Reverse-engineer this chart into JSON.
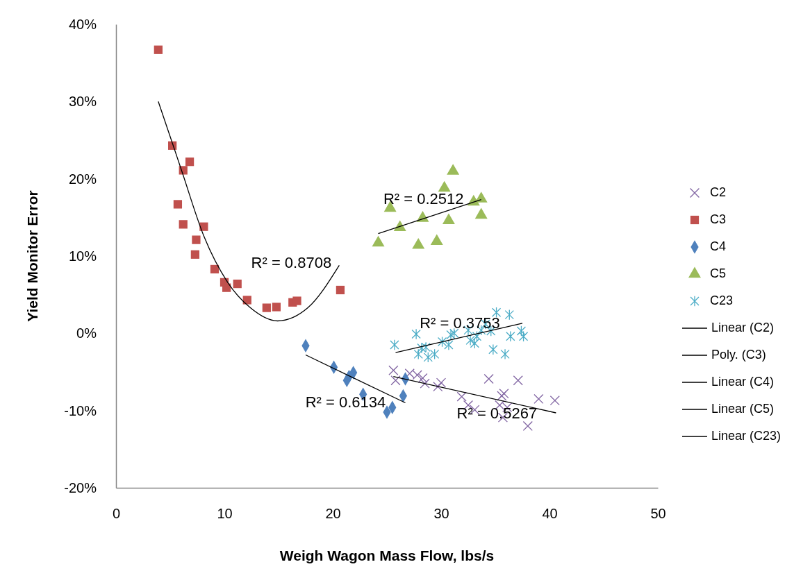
{
  "chart_data": {
    "type": "scatter",
    "xlabel": "Weigh Wagon Mass Flow, lbs/s",
    "ylabel": "Yield Monitor Error",
    "xlim": [
      0,
      50
    ],
    "xticks": [
      0,
      10,
      20,
      30,
      40,
      50
    ],
    "ylim": [
      -20,
      40
    ],
    "yticks": [
      {
        "value": -20,
        "label": "-20%"
      },
      {
        "value": -10,
        "label": "-10%"
      },
      {
        "value": 0,
        "label": "0%"
      },
      {
        "value": 10,
        "label": "10%"
      },
      {
        "value": 20,
        "label": "20%"
      },
      {
        "value": 30,
        "label": "30%"
      },
      {
        "value": 40,
        "label": "40%"
      }
    ],
    "grid": false,
    "legend": "right",
    "series": [
      {
        "name": "C2",
        "marker": "cross",
        "color": "#8064a2",
        "x": [
          25.6,
          25.8,
          27.1,
          27.8,
          28.3,
          28.5,
          29.7,
          30.0,
          31.9,
          32.5,
          33.1,
          34.4,
          35.6,
          35.8,
          37.1,
          35.4,
          36.1,
          39.0,
          40.5,
          38.0,
          35.7
        ],
        "values": [
          -4.8,
          -6.1,
          -5.2,
          -5.4,
          -5.8,
          -6.5,
          -6.9,
          -6.4,
          -8.2,
          -9.3,
          -9.9,
          -5.9,
          -8.1,
          -7.8,
          -6.1,
          -9.3,
          -9.6,
          -8.5,
          -8.7,
          -12.0,
          -10.9
        ]
      },
      {
        "name": "C3",
        "marker": "square",
        "color": "#c0504d",
        "x": [
          3.9,
          5.2,
          6.2,
          6.8,
          5.7,
          6.2,
          8.1,
          7.4,
          7.3,
          9.1,
          10.0,
          10.2,
          11.2,
          12.1,
          13.9,
          14.8,
          16.3,
          16.7,
          20.7
        ],
        "values": [
          36.7,
          24.3,
          21.1,
          22.2,
          16.7,
          14.1,
          13.8,
          12.1,
          10.2,
          8.3,
          6.6,
          5.9,
          6.4,
          4.3,
          3.3,
          3.4,
          4.0,
          4.2,
          5.6
        ]
      },
      {
        "name": "C4",
        "marker": "diamond",
        "color": "#4f81bd",
        "x": [
          17.5,
          20.1,
          21.9,
          21.5,
          21.3,
          22.8,
          26.5,
          26.7,
          25.5,
          25.0
        ],
        "values": [
          -1.6,
          -4.4,
          -5.1,
          -5.6,
          -6.1,
          -7.9,
          -8.1,
          -5.9,
          -9.6,
          -10.2
        ]
      },
      {
        "name": "C5",
        "marker": "triangle",
        "color": "#9bbb59",
        "x": [
          31.1,
          30.3,
          25.3,
          33.0,
          33.7,
          28.3,
          26.2,
          30.7,
          33.7,
          24.2,
          27.9,
          29.6
        ],
        "values": [
          21.0,
          18.8,
          16.2,
          17.0,
          17.4,
          14.9,
          13.7,
          14.6,
          15.3,
          11.7,
          11.4,
          11.9
        ]
      },
      {
        "name": "C23",
        "color": "#4bacc6",
        "x": [
          25.7,
          27.7,
          27.9,
          28.6,
          28.8,
          29.4,
          28.2,
          30.1,
          30.7,
          30.9,
          31.2,
          32.7,
          33.1,
          33.3,
          33.7,
          34.1,
          35.1,
          36.3,
          34.8,
          35.9,
          36.4,
          37.4,
          37.6,
          34.6,
          32.5
        ],
        "values": [
          -1.5,
          -0.1,
          -2.7,
          -1.8,
          -3.1,
          -2.7,
          -1.9,
          -1.1,
          -1.5,
          -0.2,
          0.0,
          -0.9,
          -1.3,
          -0.4,
          0.4,
          1.2,
          2.7,
          2.4,
          -2.1,
          -2.7,
          -0.4,
          0.3,
          -0.4,
          0.3,
          0.4
        ]
      },
      {
        "name": "Linear (C2)",
        "type": "line",
        "color": "#000000",
        "x": [
          25.6,
          40.6
        ],
        "values": [
          -5.6,
          -10.3
        ]
      },
      {
        "name": "Poly. (C3)",
        "type": "line",
        "color": "#000000",
        "x": [
          3.9,
          6.0,
          8.1,
          10.3,
          12.4,
          14.9,
          17.7,
          20.6
        ],
        "values": [
          30.0,
          21.3,
          12.6,
          6.6,
          3.3,
          1.6,
          3.3,
          8.8
        ]
      },
      {
        "name": "Linear (C4)",
        "type": "line",
        "color": "#000000",
        "x": [
          17.5,
          26.7
        ],
        "values": [
          -2.8,
          -9.0
        ]
      },
      {
        "name": "Linear (C5)",
        "type": "line",
        "color": "#000000",
        "x": [
          24.2,
          33.7
        ],
        "values": [
          12.9,
          17.3
        ]
      },
      {
        "name": "Linear (C23)",
        "type": "line",
        "color": "#000000",
        "x": [
          25.8,
          37.5
        ],
        "values": [
          -2.5,
          1.3
        ]
      }
    ],
    "annotations": [
      "R² = 0.5267",
      "R² = 0.8708",
      "R² = 0.6134",
      "R² = 0.2512",
      "R² = 0.3753"
    ]
  }
}
